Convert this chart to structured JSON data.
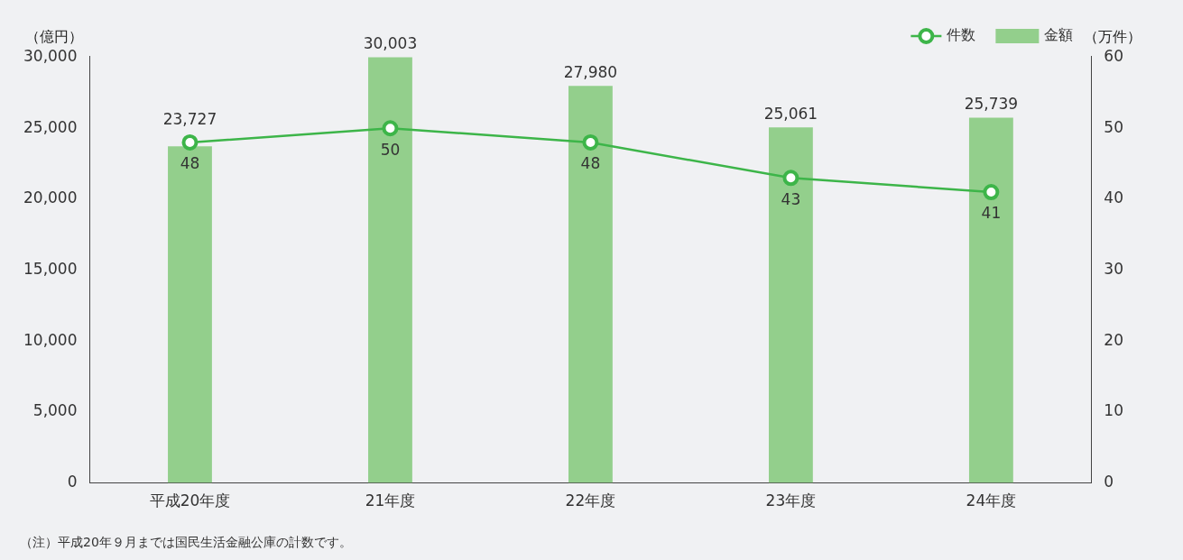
{
  "chart_data": {
    "type": "bar",
    "categories": [
      "平成20年度",
      "21年度",
      "22年度",
      "23年度",
      "24年度"
    ],
    "series": [
      {
        "name": "件数",
        "type": "line",
        "axis": "y2",
        "color": "#3db549",
        "values": [
          48,
          50,
          48,
          43,
          41
        ],
        "value_labels": [
          "48",
          "50",
          "48",
          "43",
          "41"
        ]
      },
      {
        "name": "金額",
        "color": "#93cf8c",
        "values": [
          23727,
          30003,
          27980,
          25061,
          25739
        ],
        "value_labels": [
          "23,727",
          "30,003",
          "27,980",
          "25,061",
          "25,739"
        ]
      }
    ],
    "ylabel": "（億円）",
    "y2label": "（万件）",
    "ylim": [
      0,
      30100
    ],
    "yticks": [
      {
        "value": 0,
        "label": "0"
      },
      {
        "value": 5000,
        "label": "5,000"
      },
      {
        "value": 10000,
        "label": "10,000"
      },
      {
        "value": 15000,
        "label": "15,000"
      },
      {
        "value": 20000,
        "label": "20,000"
      },
      {
        "value": 25000,
        "label": "25,000"
      },
      {
        "value": 30000,
        "label": "30,000"
      }
    ],
    "y2lim": [
      0,
      60.2
    ],
    "y2ticks": [
      0,
      10,
      20,
      30,
      40,
      50,
      60
    ],
    "legend": "top right",
    "grid": false,
    "marker": "circle",
    "line_style": "solid",
    "annotations": [
      "（注）平成20年９月までは国民生活金融公庫の計数です。"
    ]
  }
}
